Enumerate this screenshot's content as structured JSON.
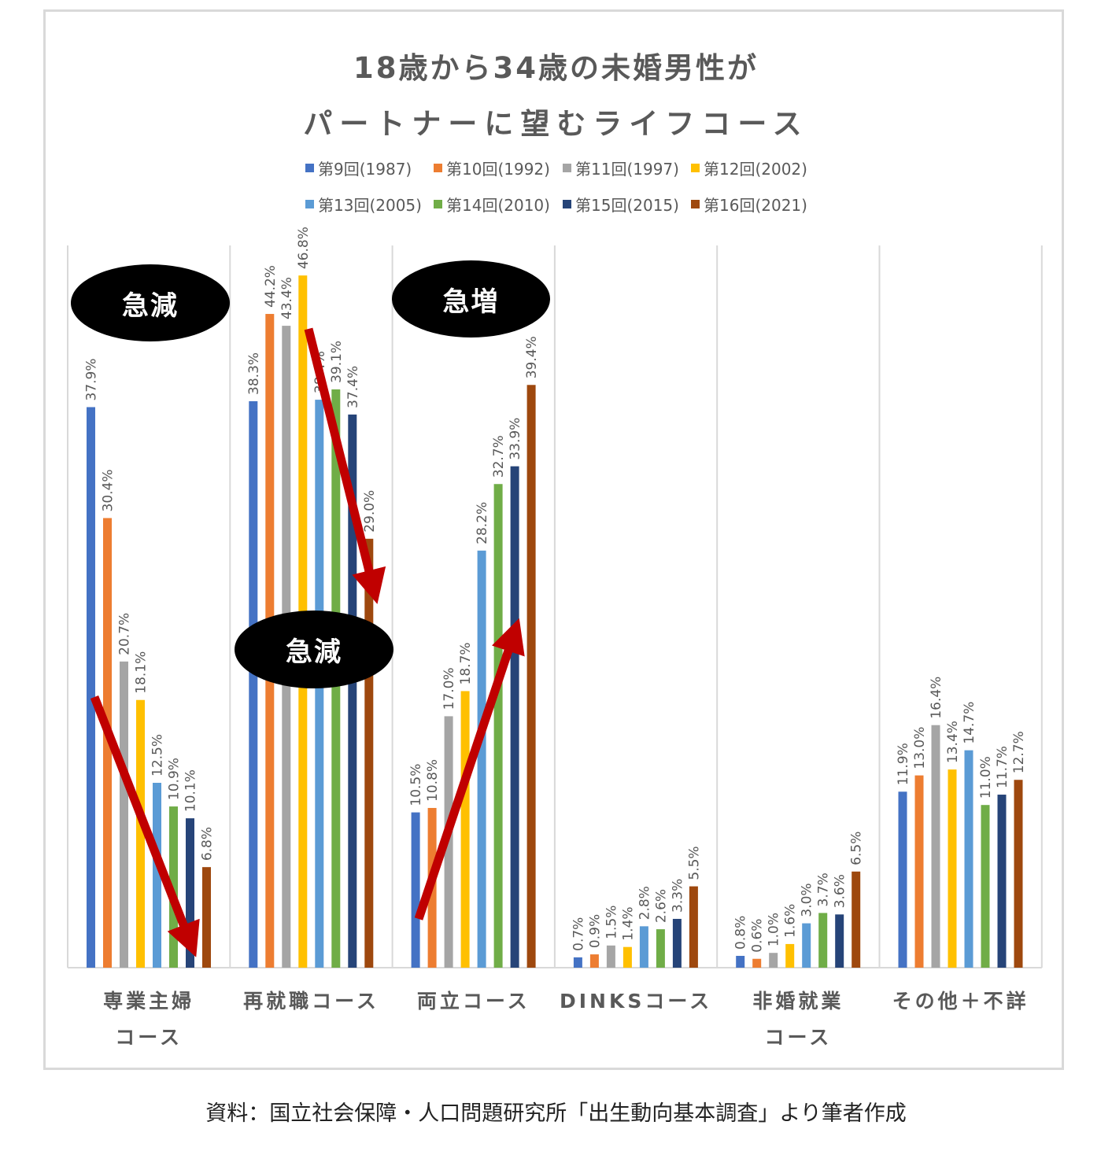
{
  "title_line1": "18歳から34歳の未婚男性が",
  "title_line2": "パートナーに望むライフコース",
  "source": "資料：国立社会保障・人口問題研究所「出生動向基本調査」より筆者作成",
  "annotations": {
    "left_decrease": "急減",
    "middle_decrease": "急減",
    "increase": "急増"
  },
  "colors": {
    "arrow": "#c00000",
    "bubble_bg": "#000000",
    "bubble_text": "#ffffff"
  },
  "chart_data": {
    "type": "bar",
    "categories": [
      "専業主婦\nコース",
      "再就職コース",
      "両立コース",
      "DINKSコース",
      "非婚就業\nコース",
      "その他＋不詳"
    ],
    "unit": "%",
    "ylim": [
      0,
      50
    ],
    "grid": false,
    "legend_position": "top",
    "series": [
      {
        "name": "第9回(1987)",
        "color": "#4472c4",
        "values": [
          37.9,
          38.3,
          10.5,
          0.7,
          0.8,
          11.9
        ]
      },
      {
        "name": "第10回(1992)",
        "color": "#ed7d31",
        "values": [
          30.4,
          44.2,
          10.8,
          0.9,
          0.6,
          13.0
        ]
      },
      {
        "name": "第11回(1997)",
        "color": "#a5a5a5",
        "values": [
          20.7,
          43.4,
          17.0,
          1.5,
          1.0,
          16.4
        ]
      },
      {
        "name": "第12回(2002)",
        "color": "#ffc000",
        "values": [
          18.1,
          46.8,
          18.7,
          1.4,
          1.6,
          13.4
        ]
      },
      {
        "name": "第13回(2005)",
        "color": "#5b9bd5",
        "values": [
          12.5,
          38.4,
          28.2,
          2.8,
          3.0,
          14.7
        ]
      },
      {
        "name": "第14回(2010)",
        "color": "#70ad47",
        "values": [
          10.9,
          39.1,
          32.7,
          2.6,
          3.7,
          11.0
        ]
      },
      {
        "name": "第15回(2015)",
        "color": "#264478",
        "values": [
          10.1,
          37.4,
          33.9,
          3.3,
          3.6,
          11.7
        ]
      },
      {
        "name": "第16回(2021)",
        "color": "#9e480e",
        "values": [
          6.8,
          29.0,
          39.4,
          5.5,
          6.5,
          12.7
        ]
      }
    ]
  }
}
